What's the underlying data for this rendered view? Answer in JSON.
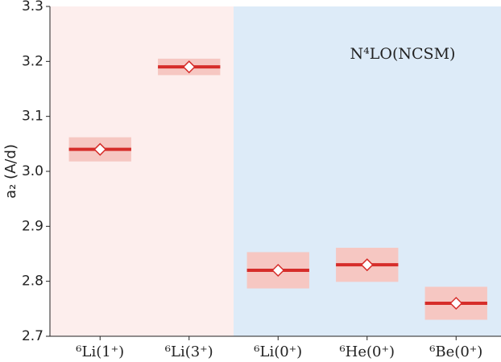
{
  "chart_data": {
    "type": "bar-band",
    "y_label": "a₂ (A/d)",
    "annotation": "N⁴LO(NCSM)",
    "categories": [
      "⁶Li(1⁺)",
      "⁶Li(3⁺)",
      "⁶Li(0⁺)",
      "⁶He(0⁺)",
      "⁶Be(0⁺)"
    ],
    "values": [
      3.04,
      3.19,
      2.82,
      2.83,
      2.76
    ],
    "errors": [
      0.022,
      0.015,
      0.033,
      0.031,
      0.03
    ],
    "color": "#d62d2a",
    "band_color": "#f6c7c2",
    "ylim": [
      2.7,
      3.3
    ],
    "yticks": [
      2.7,
      2.8,
      2.9,
      {
        "value": 3,
        "label": "3.0"
      },
      3.1,
      3.2,
      3.3
    ]
  }
}
